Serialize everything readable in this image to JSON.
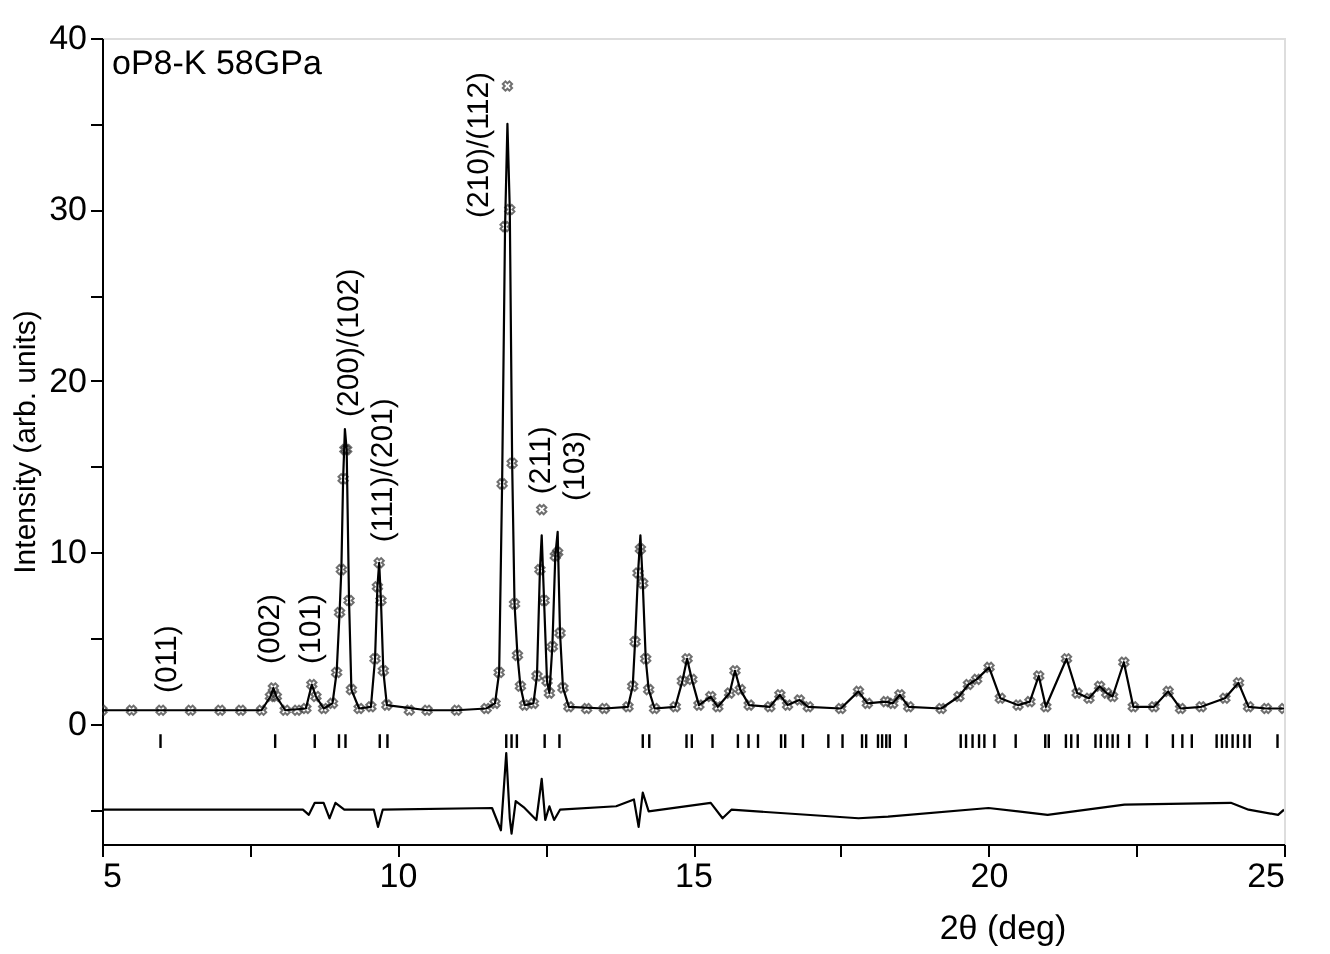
{
  "chart_data": {
    "type": "line",
    "xlabel": "2θ (deg)",
    "ylabel": "Intensity (arb. units)",
    "xlim": [
      5,
      25
    ],
    "ylim": [
      -7,
      40
    ],
    "xticks": [
      5,
      {
        "value": 7.5,
        "label": null
      },
      10,
      {
        "value": 12.5,
        "label": null
      },
      15,
      {
        "value": 17.5,
        "label": null
      },
      20,
      {
        "value": 22.5,
        "label": null
      },
      25
    ],
    "yticks": [
      {
        "value": -5,
        "label": null
      },
      0,
      {
        "value": 5,
        "label": null
      },
      10,
      {
        "value": 15,
        "label": null
      },
      20,
      {
        "value": 25,
        "label": null
      },
      30,
      {
        "value": 35,
        "label": null
      },
      40
    ],
    "grid": false,
    "annotations": [
      "oP8-K 58GPa",
      "(011)",
      "(002)",
      "(101)",
      "(200)/(102)",
      "(111)/(201)",
      "(210)/(112)",
      "(211)",
      "(103)"
    ],
    "series": [
      {
        "type": "scatter",
        "marker": "cross",
        "color": "#333333",
        "x": [
          5.0,
          5.5,
          6.0,
          6.5,
          7.0,
          7.35,
          7.7,
          7.85,
          7.9,
          7.95,
          8.1,
          8.3,
          8.45,
          8.55,
          8.62,
          8.75,
          8.9,
          8.97,
          9.02,
          9.05,
          9.08,
          9.11,
          9.14,
          9.18,
          9.22,
          9.35,
          9.55,
          9.62,
          9.66,
          9.69,
          9.72,
          9.76,
          9.82,
          10.2,
          10.5,
          11.0,
          11.5,
          11.65,
          11.72,
          11.77,
          11.82,
          11.86,
          11.9,
          11.94,
          11.98,
          12.03,
          12.08,
          12.15,
          12.3,
          12.36,
          12.41,
          12.44,
          12.48,
          12.53,
          12.57,
          12.62,
          12.67,
          12.71,
          12.75,
          12.8,
          12.9,
          13.2,
          13.5,
          13.9,
          13.98,
          14.02,
          14.07,
          14.11,
          14.15,
          14.2,
          14.25,
          14.35,
          14.7,
          14.82,
          14.9,
          14.98,
          15.1,
          15.3,
          15.42,
          15.62,
          15.71,
          15.8,
          15.95,
          16.3,
          16.47,
          16.6,
          16.8,
          16.95,
          17.5,
          17.8,
          17.95,
          18.26,
          18.38,
          18.5,
          18.65,
          19.2,
          19.5,
          19.66,
          19.8,
          20.01,
          20.2,
          20.5,
          20.7,
          20.85,
          20.97,
          21.32,
          21.5,
          21.7,
          21.88,
          22.0,
          22.1,
          22.29,
          22.45,
          22.8,
          23.04,
          23.25,
          23.6,
          24.0,
          24.23,
          24.4,
          24.7,
          25.0
        ],
        "values": [
          0.8,
          0.8,
          0.8,
          0.8,
          0.8,
          0.8,
          0.8,
          1.6,
          2.1,
          1.6,
          0.8,
          0.8,
          0.9,
          2.3,
          1.6,
          0.9,
          1.2,
          3.0,
          6.5,
          9.0,
          14.3,
          16.0,
          16.0,
          7.2,
          2.0,
          0.9,
          1.0,
          3.8,
          8.0,
          9.4,
          7.2,
          3.1,
          1.1,
          0.8,
          0.8,
          0.8,
          0.9,
          1.2,
          3.0,
          14.0,
          29.0,
          37.2,
          30.0,
          15.2,
          7.0,
          4.0,
          2.2,
          1.1,
          1.2,
          2.8,
          9.0,
          12.5,
          7.2,
          2.5,
          1.8,
          4.5,
          9.8,
          10.0,
          5.3,
          2.1,
          1.0,
          0.9,
          0.9,
          1.0,
          2.2,
          4.8,
          8.8,
          10.2,
          8.2,
          3.8,
          2.0,
          0.9,
          1.0,
          2.5,
          3.8,
          2.6,
          1.1,
          1.6,
          1.0,
          1.8,
          3.1,
          2.0,
          1.1,
          1.0,
          1.7,
          1.1,
          1.4,
          1.0,
          0.9,
          1.9,
          1.2,
          1.3,
          1.2,
          1.7,
          1.0,
          0.9,
          1.6,
          2.3,
          2.6,
          3.3,
          1.5,
          1.1,
          1.3,
          2.8,
          1.0,
          3.8,
          1.8,
          1.5,
          2.2,
          1.8,
          1.6,
          3.6,
          1.0,
          1.0,
          1.9,
          0.9,
          1.0,
          1.5,
          2.4,
          1.0,
          0.9,
          0.9
        ]
      },
      {
        "color": "#000000",
        "x": [
          5.0,
          6.0,
          7.0,
          7.7,
          7.85,
          7.9,
          7.95,
          8.1,
          8.45,
          8.55,
          8.62,
          8.75,
          8.9,
          8.97,
          9.02,
          9.05,
          9.08,
          9.11,
          9.14,
          9.18,
          9.22,
          9.35,
          9.55,
          9.62,
          9.66,
          9.69,
          9.72,
          9.76,
          9.82,
          10.5,
          11.0,
          11.5,
          11.65,
          11.72,
          11.77,
          11.82,
          11.86,
          11.9,
          11.94,
          11.98,
          12.03,
          12.08,
          12.15,
          12.3,
          12.36,
          12.41,
          12.44,
          12.48,
          12.53,
          12.57,
          12.62,
          12.67,
          12.71,
          12.75,
          12.8,
          12.9,
          13.5,
          13.9,
          13.98,
          14.02,
          14.07,
          14.11,
          14.15,
          14.2,
          14.25,
          14.35,
          14.7,
          14.82,
          14.9,
          14.98,
          15.1,
          15.3,
          15.42,
          15.62,
          15.71,
          15.8,
          15.95,
          16.3,
          16.47,
          16.6,
          16.8,
          16.95,
          17.5,
          17.8,
          17.95,
          18.26,
          18.38,
          18.5,
          18.65,
          19.2,
          19.5,
          19.66,
          19.8,
          20.01,
          20.2,
          20.5,
          20.7,
          20.85,
          20.97,
          21.32,
          21.5,
          21.7,
          21.88,
          22.0,
          22.1,
          22.29,
          22.45,
          22.8,
          23.04,
          23.25,
          23.6,
          24.0,
          24.23,
          24.4,
          24.7,
          25.0
        ],
        "values": [
          0.8,
          0.8,
          0.8,
          0.8,
          1.6,
          2.1,
          1.6,
          0.8,
          0.9,
          2.3,
          1.6,
          0.9,
          1.2,
          3.0,
          6.5,
          9.0,
          14.3,
          17.2,
          16.0,
          7.2,
          2.0,
          0.9,
          1.0,
          3.8,
          8.0,
          9.4,
          7.2,
          3.1,
          1.1,
          0.8,
          0.8,
          0.9,
          1.2,
          3.0,
          14.0,
          29.0,
          35.0,
          30.0,
          15.2,
          7.0,
          4.0,
          2.2,
          1.1,
          1.2,
          2.8,
          9.0,
          11.0,
          7.2,
          2.5,
          1.8,
          4.5,
          9.8,
          11.2,
          5.3,
          2.1,
          1.0,
          0.9,
          1.0,
          2.2,
          4.8,
          8.8,
          11.0,
          8.2,
          3.8,
          2.0,
          0.9,
          1.0,
          2.5,
          3.8,
          2.6,
          1.1,
          1.6,
          1.0,
          1.8,
          3.1,
          2.0,
          1.1,
          1.0,
          1.7,
          1.1,
          1.4,
          1.0,
          0.9,
          1.9,
          1.2,
          1.3,
          1.2,
          1.7,
          1.0,
          0.9,
          1.6,
          2.3,
          2.6,
          3.3,
          1.5,
          1.1,
          1.3,
          2.8,
          1.0,
          3.8,
          1.8,
          1.5,
          2.2,
          1.8,
          1.6,
          3.6,
          1.0,
          1.0,
          1.9,
          0.9,
          1.0,
          1.5,
          2.4,
          1.0,
          0.9,
          0.9
        ]
      },
      {
        "type": "bar",
        "color": "#000000",
        "x": [
          5.99,
          7.93,
          8.6,
          9.01,
          9.12,
          9.7,
          9.83,
          11.84,
          11.93,
          12.02,
          12.49,
          12.74,
          14.15,
          14.26,
          14.89,
          14.98,
          15.33,
          15.76,
          15.94,
          16.1,
          16.49,
          16.56,
          16.86,
          17.29,
          17.53,
          17.86,
          17.93,
          18.13,
          18.2,
          18.27,
          18.33,
          18.6,
          19.53,
          19.62,
          19.73,
          19.84,
          19.93,
          20.1,
          20.46,
          20.96,
          21.02,
          21.31,
          21.4,
          21.51,
          21.81,
          21.9,
          22.01,
          22.1,
          22.19,
          22.38,
          22.68,
          23.12,
          23.28,
          23.44,
          23.86,
          23.95,
          24.03,
          24.13,
          24.22,
          24.33,
          24.42,
          24.89
        ],
        "base": [
          -1.4,
          -1.4,
          -1.4,
          -1.4,
          -1.4,
          -1.4,
          -1.4,
          -1.4,
          -1.4,
          -1.4,
          -1.4,
          -1.4,
          -1.4,
          -1.4,
          -1.4,
          -1.4,
          -1.4,
          -1.4,
          -1.4,
          -1.4,
          -1.4,
          -1.4,
          -1.4,
          -1.4,
          -1.4,
          -1.4,
          -1.4,
          -1.4,
          -1.4,
          -1.4,
          -1.4,
          -1.4,
          -1.4,
          -1.4,
          -1.4,
          -1.4,
          -1.4,
          -1.4,
          -1.4,
          -1.4,
          -1.4,
          -1.4,
          -1.4,
          -1.4,
          -1.4,
          -1.4,
          -1.4,
          -1.4,
          -1.4,
          -1.4,
          -1.4,
          -1.4,
          -1.4,
          -1.4,
          -1.4,
          -1.4,
          -1.4,
          -1.4,
          -1.4,
          -1.4,
          -1.4,
          -1.4
        ],
        "values": [
          0.8,
          0.8,
          0.8,
          0.8,
          0.8,
          0.8,
          0.8,
          0.8,
          0.8,
          0.8,
          0.8,
          0.8,
          0.8,
          0.8,
          0.8,
          0.8,
          0.8,
          0.8,
          0.8,
          0.8,
          0.8,
          0.8,
          0.8,
          0.8,
          0.8,
          0.8,
          0.8,
          0.8,
          0.8,
          0.8,
          0.8,
          0.8,
          0.8,
          0.8,
          0.8,
          0.8,
          0.8,
          0.8,
          0.8,
          0.8,
          0.8,
          0.8,
          0.8,
          0.8,
          0.8,
          0.8,
          0.8,
          0.8,
          0.8,
          0.8,
          0.8,
          0.8,
          0.8,
          0.8,
          0.8,
          0.8,
          0.8,
          0.8,
          0.8,
          0.8,
          0.8,
          0.8
        ]
      },
      {
        "color": "#000000",
        "x": [
          5.0,
          8.4,
          8.5,
          8.6,
          8.75,
          8.85,
          8.95,
          9.1,
          9.6,
          9.67,
          9.75,
          11.6,
          11.75,
          11.84,
          11.9,
          11.93,
          12.0,
          12.15,
          12.35,
          12.44,
          12.5,
          12.57,
          12.65,
          12.75,
          13.7,
          14.0,
          14.08,
          14.15,
          14.25,
          15.3,
          15.5,
          15.65,
          17.8,
          18.3,
          20.0,
          21.0,
          22.3,
          24.1,
          24.4,
          24.9,
          25.0
        ],
        "values": [
          -5.0,
          -5.0,
          -5.3,
          -4.6,
          -4.6,
          -5.5,
          -4.6,
          -5.0,
          -5.0,
          -6.0,
          -5.0,
          -4.9,
          -6.2,
          -1.7,
          -5.5,
          -6.4,
          -4.5,
          -4.9,
          -5.6,
          -3.2,
          -5.6,
          -4.8,
          -5.6,
          -5.0,
          -4.8,
          -4.4,
          -6.0,
          -4.0,
          -5.1,
          -4.6,
          -5.5,
          -5.0,
          -5.5,
          -5.4,
          -4.9,
          -5.3,
          -4.7,
          -4.6,
          -5.0,
          -5.3,
          -5.0
        ]
      }
    ]
  }
}
